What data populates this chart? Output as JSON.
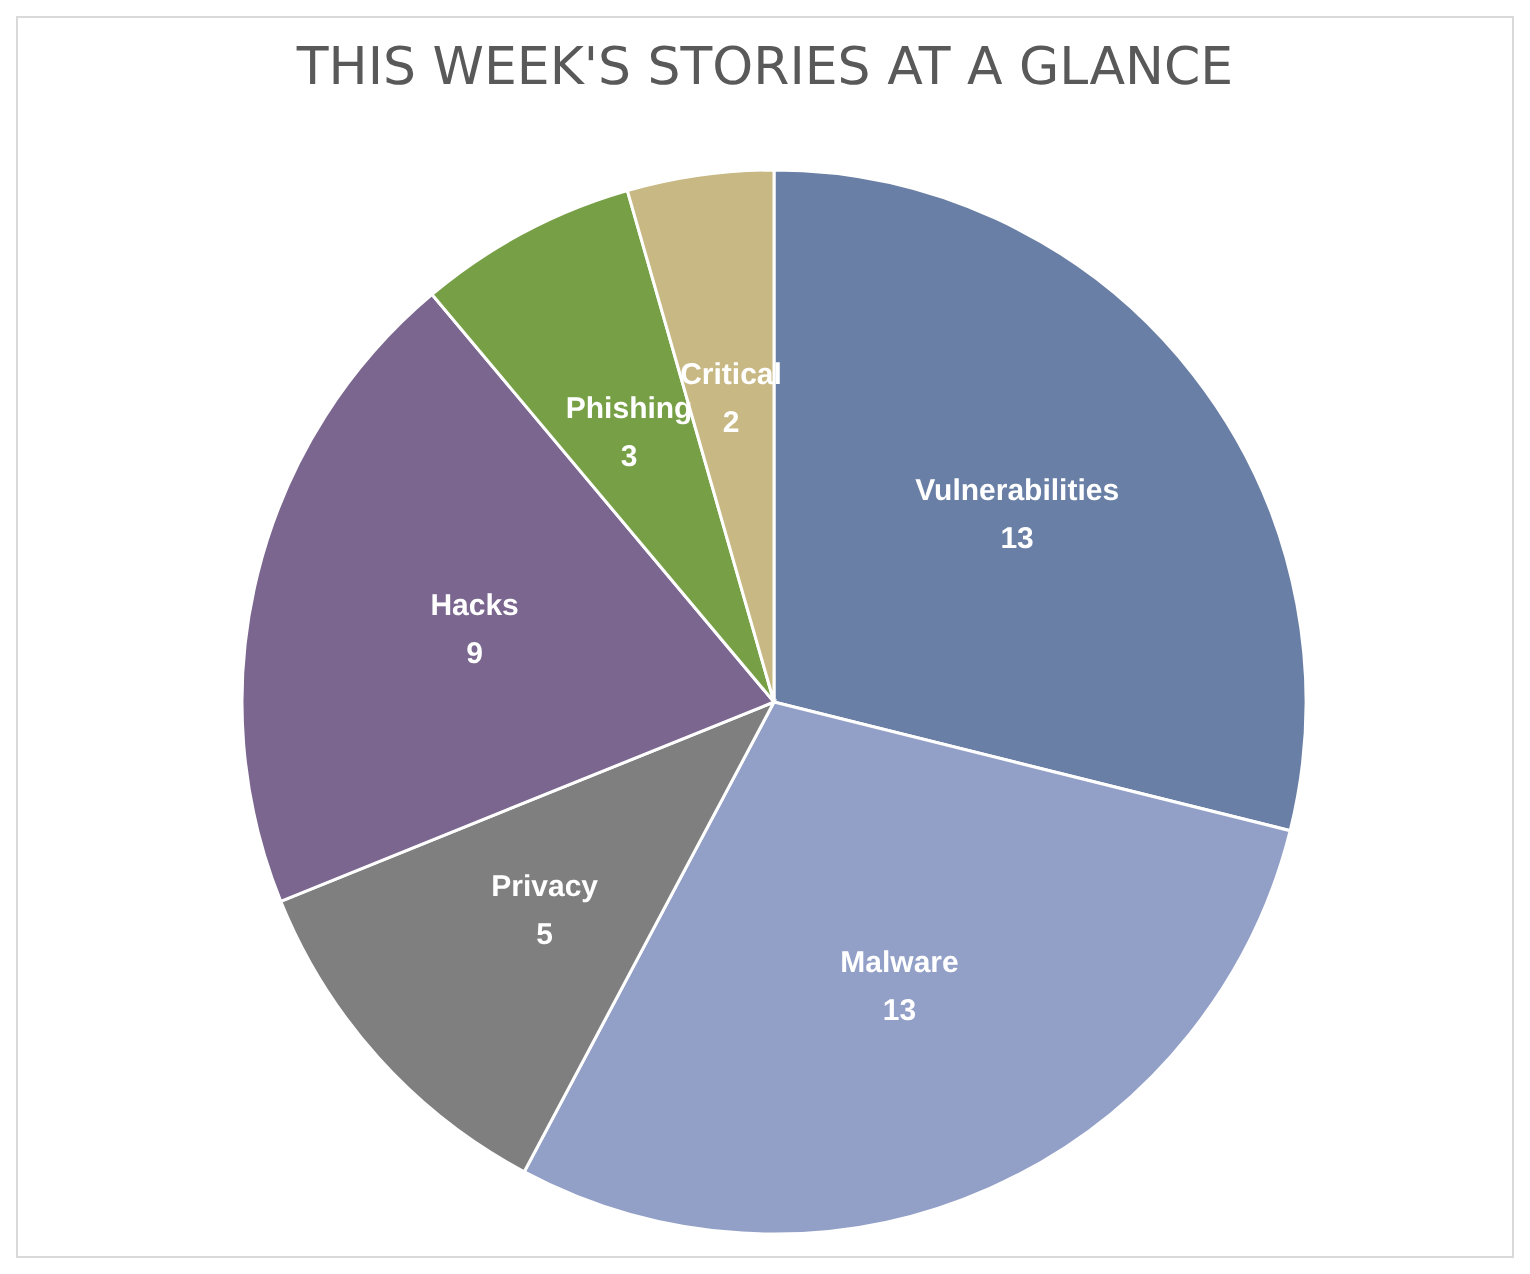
{
  "chart_data": {
    "type": "pie",
    "title": "THIS WEEK'S STORIES AT A GLANCE",
    "categories": [
      "Vulnerabilities",
      "Malware",
      "Privacy",
      "Hacks",
      "Phishing",
      "Critical"
    ],
    "values": [
      13,
      13,
      5,
      9,
      3,
      2
    ],
    "colors": [
      "#697fa5",
      "#929fc7",
      "#7f7f7f",
      "#7a668e",
      "#77a046",
      "#c7b884"
    ],
    "data_labels": true
  }
}
